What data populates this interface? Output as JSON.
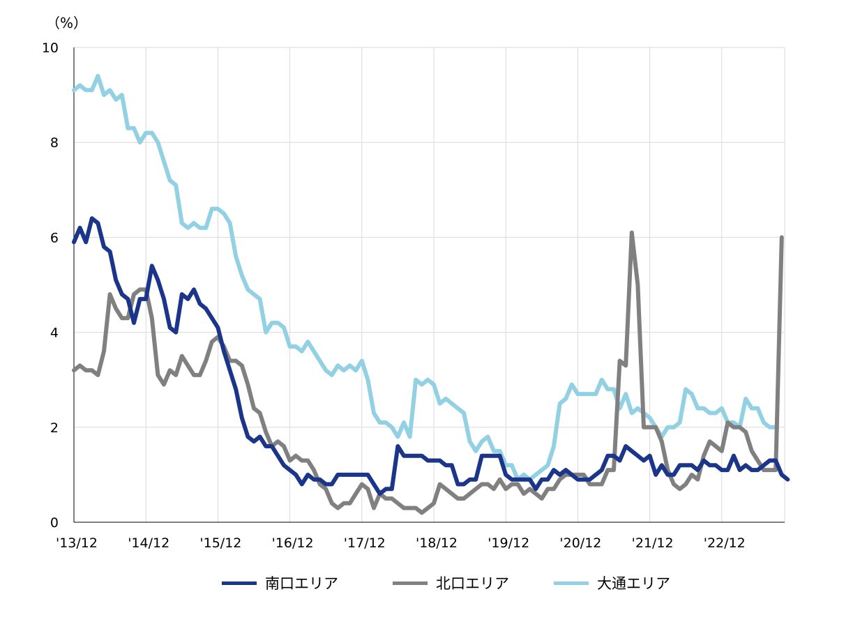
{
  "chart_data": {
    "type": "line",
    "title": "",
    "ylabel": "（%）",
    "xlabel": "",
    "ylim": [
      0,
      10
    ],
    "yticks": [
      0,
      2,
      4,
      6,
      8,
      10
    ],
    "xtick_labels": [
      "'13/12",
      "'14/12",
      "'15/12",
      "'16/12",
      "'17/12",
      "'18/12",
      "'19/12",
      "'20/12",
      "'21/12",
      "'22/12"
    ],
    "grid": true,
    "legend_position": "bottom",
    "x_start": "2013-12",
    "x_frequency": "monthly",
    "series": [
      {
        "name": "南口エリア",
        "color": "#1a3589",
        "values": [
          5.9,
          6.2,
          5.9,
          6.4,
          6.3,
          5.8,
          5.7,
          5.1,
          4.8,
          4.7,
          4.2,
          4.7,
          4.7,
          5.4,
          5.1,
          4.7,
          4.1,
          4.0,
          4.8,
          4.7,
          4.9,
          4.6,
          4.5,
          4.3,
          4.1,
          3.6,
          3.2,
          2.8,
          2.2,
          1.8,
          1.7,
          1.8,
          1.6,
          1.6,
          1.4,
          1.2,
          1.1,
          1.0,
          0.8,
          1.0,
          0.9,
          0.9,
          0.8,
          0.8,
          1.0,
          1.0,
          1.0,
          1.0,
          1.0,
          1.0,
          0.8,
          0.6,
          0.7,
          0.7,
          1.6,
          1.4,
          1.4,
          1.4,
          1.4,
          1.3,
          1.3,
          1.3,
          1.2,
          1.2,
          0.8,
          0.8,
          0.9,
          0.9,
          1.4,
          1.4,
          1.4,
          1.4,
          1.0,
          0.9,
          0.9,
          0.9,
          0.9,
          0.7,
          0.9,
          0.9,
          1.1,
          1.0,
          1.1,
          1.0,
          0.9,
          0.9,
          0.9,
          1.0,
          1.1,
          1.4,
          1.4,
          1.3,
          1.6,
          1.5,
          1.4,
          1.3,
          1.4,
          1.0,
          1.2,
          1.0,
          1.0,
          1.2,
          1.2,
          1.2,
          1.1,
          1.3,
          1.2,
          1.2,
          1.1,
          1.1,
          1.4,
          1.1,
          1.2,
          1.1,
          1.1,
          1.2,
          1.3,
          1.3,
          1.0,
          0.9
        ]
      },
      {
        "name": "北口エリア",
        "color": "#808080",
        "values": [
          3.2,
          3.3,
          3.2,
          3.2,
          3.1,
          3.6,
          4.8,
          4.5,
          4.3,
          4.3,
          4.8,
          4.9,
          4.9,
          4.3,
          3.1,
          2.9,
          3.2,
          3.1,
          3.5,
          3.3,
          3.1,
          3.1,
          3.4,
          3.8,
          3.9,
          3.7,
          3.4,
          3.4,
          3.3,
          2.9,
          2.4,
          2.3,
          1.9,
          1.6,
          1.7,
          1.6,
          1.3,
          1.4,
          1.3,
          1.3,
          1.1,
          0.8,
          0.7,
          0.4,
          0.3,
          0.4,
          0.4,
          0.6,
          0.8,
          0.7,
          0.3,
          0.6,
          0.5,
          0.5,
          0.4,
          0.3,
          0.3,
          0.3,
          0.2,
          0.3,
          0.4,
          0.8,
          0.7,
          0.6,
          0.5,
          0.5,
          0.6,
          0.7,
          0.8,
          0.8,
          0.7,
          0.9,
          0.7,
          0.8,
          0.8,
          0.6,
          0.7,
          0.6,
          0.5,
          0.7,
          0.7,
          0.9,
          1.0,
          1.0,
          1.0,
          1.0,
          0.8,
          0.8,
          0.8,
          1.1,
          1.1,
          3.4,
          3.3,
          6.1,
          5.0,
          2.0,
          2.0,
          2.0,
          1.7,
          1.1,
          0.8,
          0.7,
          0.8,
          1.0,
          0.9,
          1.4,
          1.7,
          1.6,
          1.5,
          2.1,
          2.0,
          2.0,
          1.9,
          1.5,
          1.3,
          1.1,
          1.1,
          1.1,
          6.0
        ]
      },
      {
        "name": "大通エリア",
        "color": "#92d0e4",
        "values": [
          9.1,
          9.2,
          9.1,
          9.1,
          9.4,
          9.0,
          9.1,
          8.9,
          9.0,
          8.3,
          8.3,
          8.0,
          8.2,
          8.2,
          8.0,
          7.6,
          7.2,
          7.1,
          6.3,
          6.2,
          6.3,
          6.2,
          6.2,
          6.6,
          6.6,
          6.5,
          6.3,
          5.6,
          5.2,
          4.9,
          4.8,
          4.7,
          4.0,
          4.2,
          4.2,
          4.1,
          3.7,
          3.7,
          3.6,
          3.8,
          3.6,
          3.4,
          3.2,
          3.1,
          3.3,
          3.2,
          3.3,
          3.2,
          3.4,
          3.0,
          2.3,
          2.1,
          2.1,
          2.0,
          1.8,
          2.1,
          1.8,
          3.0,
          2.9,
          3.0,
          2.9,
          2.5,
          2.6,
          2.5,
          2.4,
          2.3,
          1.7,
          1.5,
          1.7,
          1.8,
          1.5,
          1.5,
          1.2,
          1.2,
          0.9,
          1.0,
          0.9,
          1.0,
          1.1,
          1.2,
          1.6,
          2.5,
          2.6,
          2.9,
          2.7,
          2.7,
          2.7,
          2.7,
          3.0,
          2.8,
          2.8,
          2.4,
          2.7,
          2.3,
          2.4,
          2.3,
          2.2,
          2.0,
          1.8,
          2.0,
          2.0,
          2.1,
          2.8,
          2.7,
          2.4,
          2.4,
          2.3,
          2.3,
          2.4,
          2.1,
          2.1,
          2.0,
          2.6,
          2.4,
          2.4,
          2.1,
          2.0,
          2.0
        ]
      }
    ]
  }
}
